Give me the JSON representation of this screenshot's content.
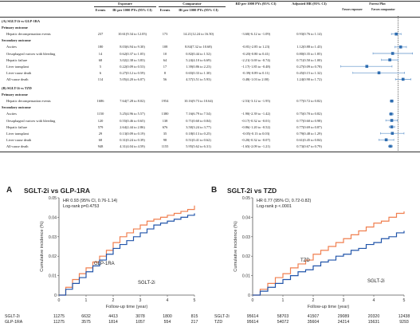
{
  "table": {
    "headers": {
      "outcome": "",
      "exposure": "Exposure",
      "comparator": "Comparator",
      "events": "Events",
      "ir": "IR per 1000 PYs (95% CI)",
      "rd": "RD per 1000 PYs (95% CI)",
      "hr": "Adjusted HR (95% CI)",
      "forest": "Forest Plot",
      "favors_exposure": "Favors exposure",
      "favors_comparator": "Favors comparator"
    },
    "sections": [
      {
        "title": "(A) SGLT-2i vs GLP-1RA",
        "groups": [
          {
            "label": "Primary outcome",
            "rows": [
              {
                "outcome": "Hepatic decompensation events",
                "e_events": "237",
                "e_ir": "10.61(9.34 to 12.05)",
                "c_events": "173",
                "c_ir": "14.21(12.24 to 16.50)",
                "rd": "-3.60(-6.12 to -1.09)",
                "hr": "0.93(0.76 to 1.14)",
                "hr_point": 0.93,
                "hr_low": 0.76,
                "hr_high": 1.14
              }
            ]
          },
          {
            "label": "Secondary outcome",
            "rows": [
              {
                "outcome": "Ascites",
                "e_events": "180",
                "e_ir": "8.03(6.94 to 9.30)",
                "c_events": "108",
                "c_ir": "8.84(7.32 to 10.68)",
                "rd": "-0.81(-2.85 to 1.23)",
                "hr": "1.12(0.88 to 1.43)",
                "hr_point": 1.12,
                "hr_low": 0.88,
                "hr_high": 1.43
              },
              {
                "outcome": "Oesophageal varices with bleeding",
                "e_events": "14",
                "e_ir": "0.62(0.37 to 1.05)",
                "c_events": "10",
                "c_ir": "0.82(0.44 to 1.52)",
                "rd": "-0.20(-0.80 to 0.41)",
                "hr": "0.80(0.35 to 1.85)",
                "hr_point": 0.8,
                "hr_low": 0.35,
                "hr_high": 1.85
              },
              {
                "outcome": "Hepatic failure",
                "e_events": "68",
                "c_events": "64",
                "e_ir": "3.02(2.38 to 3.83)",
                "c_ir": "5.24(4.10 to 6.69)",
                "rd": "-2.21(-3.69 to -0.74)",
                "hr": "0.71(0.50 to 1.00)",
                "hr_point": 0.71,
                "hr_low": 0.5,
                "hr_high": 1.0
              },
              {
                "outcome": "Liver transplant",
                "e_events": "5",
                "e_ir": "0.22(0.09 to 0.53)",
                "c_events": "17",
                "c_ir": "1.39(0.86 to 2.23)",
                "rd": "-1.17(-1.85 to -0.48)",
                "hr": "0.27(0.09 to 0.78)",
                "hr_point": 0.27,
                "hr_low": 0.09,
                "hr_high": 0.78
              },
              {
                "outcome": "Liver-cause death",
                "e_events": "6",
                "e_ir": "0.27(0.12 to 0.59)",
                "c_events": "8",
                "c_ir": "0.65(0.33 to 1.30)",
                "rd": "-0.39(-0.89 to 0.11)",
                "hr": "0.45(0.15 to 1.32)",
                "hr_point": 0.45,
                "hr_low": 0.15,
                "hr_high": 1.32
              },
              {
                "outcome": "All-cause death",
                "e_events": "114",
                "e_ir": "5.05(4.20 to 6.07)",
                "c_events": "56",
                "c_ir": "4.57(3.51 to 5.93)",
                "rd": "0.48(-1.03 to 2.00)",
                "hr": "1.24(0.90 to 1.72)",
                "hr_point": 1.24,
                "hr_low": 0.9,
                "hr_high": 1.72
              }
            ]
          }
        ]
      },
      {
        "title": "(B) SGLT-2i vs TZD",
        "groups": [
          {
            "label": "Primary outcome",
            "rows": [
              {
                "outcome": "Hepatic decompensation events",
                "e_events": "1686",
                "e_ir": "7.64(7.28 to 8.02)",
                "c_events": "1954",
                "c_ir": "10.16(9.73 to 10.64)",
                "rd": "-2.53(-3.12 to -1.95)",
                "hr": "0.77(0.72 to 0.82)",
                "hr_point": 0.77,
                "hr_low": 0.72,
                "hr_high": 0.82
              }
            ]
          },
          {
            "label": "Secondary outcome",
            "rows": [
              {
                "outcome": "Ascites",
                "e_events": "1150",
                "e_ir": "5.25(4.96 to 5.57)",
                "c_events": "1380",
                "c_ir": "7.16(6.79 to 7.54)",
                "rd": "-1.90(-2.39 to -1.42)",
                "hr": "0.75(0.70 to 0.82)",
                "hr_point": 0.75,
                "hr_low": 0.7,
                "hr_high": 0.82
              },
              {
                "outcome": "Oesophageal varices with bleeding",
                "e_events": "120",
                "e_ir": "0.55(0.46 to 0.65)",
                "c_events": "138",
                "c_ir": "0.71(0.60 to 0.84)",
                "rd": "-0.17(-0.32 to -0.01)",
                "hr": "0.77(0.60 to 0.98)",
                "hr_point": 0.77,
                "hr_low": 0.6,
                "hr_high": 0.98
              },
              {
                "outcome": "Hepatic failure",
                "e_events": "579",
                "e_ir": "2.64(2.44 to 2.86)",
                "c_events": "676",
                "c_ir": "3.50(3.24 to 3.77)",
                "rd": "-0.86(-1.20 to -0.52)",
                "hr": "0.77(0.69 to 0.87)",
                "hr_point": 0.77,
                "hr_low": 0.69,
                "hr_high": 0.87
              },
              {
                "outcome": "Liver transplant",
                "e_events": "29",
                "e_ir": "0.13(0.09 to 0.19)",
                "c_events": "35",
                "c_ir": "0.18(0.13 to 0.25)",
                "rd": "-0.05(-0.13 to 0.03)",
                "hr": "0.79(0.48 to 1.29)",
                "hr_point": 0.79,
                "hr_low": 0.48,
                "hr_high": 1.29
              },
              {
                "outcome": "Liver-cause death",
                "e_events": "68",
                "e_ir": "0.31(0.24 to 0.39)",
                "c_events": "98",
                "c_ir": "0.51(0.41 to 0.62)",
                "rd": "-0.20(-0.32 to -0.07)",
                "hr": "0.61(0.45 to 0.84)",
                "hr_point": 0.61,
                "hr_low": 0.45,
                "hr_high": 0.84
              },
              {
                "outcome": "All-cause death",
                "e_events": "948",
                "e_ir": "4.31(4.04 to 4.59)",
                "c_events": "1155",
                "c_ir": "5.95(5.62 to 6.31)",
                "rd": "-1.65(-2.09 to -1.21)",
                "hr": "0.73(0.67 to 0.79)",
                "hr_point": 0.73,
                "hr_low": 0.67,
                "hr_high": 0.79
              }
            ]
          }
        ]
      }
    ]
  },
  "km_panels": [
    {
      "letter": "A",
      "title": "SGLT-2i vs GLP-1RA",
      "stats_line1": "HR 0.93 (95% CI, 0.76-1.14)",
      "stats_line2": "Log-rank p=0.4753",
      "label_series1": "GLP-1RA",
      "label_series2": "SGLT-2i",
      "xlabel": "Follow-up time (year)",
      "ylabel": "Cumulative incidence (%)",
      "risk_rows": [
        {
          "name": "SGLT-2i",
          "values": [
            "11275",
            "6632",
            "4413",
            "3078",
            "1800",
            "815"
          ]
        },
        {
          "name": "GLP-1RA",
          "values": [
            "11275",
            "3575",
            "1814",
            "1057",
            "554",
            "217"
          ]
        }
      ]
    },
    {
      "letter": "B",
      "title": "SGLT-2i vs TZD",
      "stats_line1": "HR 0.77 (95% CI, 0.72-0.82)",
      "stats_line2": "Log-rank p <.0001",
      "label_series1": "TZD",
      "label_series2": "SGLT-2i",
      "xlabel": "Follow-up time (year)",
      "ylabel": "Cumulative incidence (%)",
      "risk_rows": [
        {
          "name": "SGLT-2i",
          "values": [
            "95614",
            "58703",
            "41507",
            "29089",
            "20320",
            "12438"
          ]
        },
        {
          "name": "TZD",
          "values": [
            "95614",
            "54072",
            "35604",
            "24214",
            "15631",
            "9293"
          ]
        }
      ]
    }
  ],
  "chart_data": [
    {
      "type": "line",
      "title": "SGLT-2i vs GLP-1RA",
      "xlabel": "Follow-up time (year)",
      "ylabel": "Cumulative incidence (%)",
      "xlim": [
        0,
        5
      ],
      "ylim": [
        0,
        0.05
      ],
      "xticks": [
        "0",
        "1",
        "2",
        "3",
        "4",
        "5"
      ],
      "yticks": [
        "0",
        "0.01",
        "0.02",
        "0.03",
        "0.04",
        "0.05"
      ],
      "series": [
        {
          "name": "GLP-1RA",
          "color": "#f07f4f",
          "x": [
            0,
            0.25,
            0.5,
            0.75,
            1,
            1.25,
            1.5,
            1.75,
            2,
            2.25,
            2.5,
            2.75,
            3,
            3.25,
            3.5,
            3.75,
            4,
            4.25,
            4.5,
            4.75,
            5
          ],
          "y": [
            0,
            0.004,
            0.008,
            0.011,
            0.014,
            0.017,
            0.02,
            0.023,
            0.027,
            0.03,
            0.032,
            0.034,
            0.036,
            0.038,
            0.039,
            0.04,
            0.041,
            0.042,
            0.043,
            0.044,
            0.046
          ]
        },
        {
          "name": "SGLT-2i",
          "color": "#2255aa",
          "x": [
            0,
            0.25,
            0.5,
            0.75,
            1,
            1.25,
            1.5,
            1.75,
            2,
            2.25,
            2.5,
            2.75,
            3,
            3.25,
            3.5,
            3.75,
            4,
            4.25,
            4.5,
            4.75,
            5
          ],
          "y": [
            0,
            0.003,
            0.006,
            0.009,
            0.012,
            0.015,
            0.018,
            0.021,
            0.024,
            0.026,
            0.028,
            0.03,
            0.032,
            0.034,
            0.036,
            0.037,
            0.038,
            0.039,
            0.04,
            0.041,
            0.042
          ]
        }
      ]
    },
    {
      "type": "line",
      "title": "SGLT-2i vs TZD",
      "xlabel": "Follow-up time (year)",
      "ylabel": "Cumulative incidence (%)",
      "xlim": [
        0,
        5
      ],
      "ylim": [
        0,
        0.05
      ],
      "xticks": [
        "0",
        "1",
        "2",
        "3",
        "4",
        "5"
      ],
      "yticks": [
        "0",
        "0.01",
        "0.02",
        "0.03",
        "0.04",
        "0.05"
      ],
      "series": [
        {
          "name": "TZD",
          "color": "#f07f4f",
          "x": [
            0,
            0.25,
            0.5,
            0.75,
            1,
            1.25,
            1.5,
            1.75,
            2,
            2.25,
            2.5,
            2.75,
            3,
            3.25,
            3.5,
            3.75,
            4,
            4.25,
            4.5,
            4.75,
            5
          ],
          "y": [
            0,
            0.003,
            0.006,
            0.009,
            0.011,
            0.014,
            0.016,
            0.018,
            0.021,
            0.023,
            0.025,
            0.027,
            0.029,
            0.031,
            0.033,
            0.035,
            0.037,
            0.038,
            0.04,
            0.042,
            0.043
          ]
        },
        {
          "name": "SGLT-2i",
          "color": "#2255aa",
          "x": [
            0,
            0.25,
            0.5,
            0.75,
            1,
            1.25,
            1.5,
            1.75,
            2,
            2.25,
            2.5,
            2.75,
            3,
            3.25,
            3.5,
            3.75,
            4,
            4.25,
            4.5,
            4.75,
            5
          ],
          "y": [
            0,
            0.002,
            0.004,
            0.006,
            0.008,
            0.01,
            0.012,
            0.013,
            0.015,
            0.017,
            0.018,
            0.02,
            0.021,
            0.023,
            0.024,
            0.026,
            0.027,
            0.029,
            0.03,
            0.032,
            0.033
          ]
        }
      ]
    },
    {
      "type": "scatter",
      "title": "Forest Plot",
      "xlabel": "",
      "scale": "log",
      "reference_line": 1.0,
      "rows_note": "adjusted HR with 95% CI per outcome row",
      "series": [
        {
          "name": "(A) SGLT-2i vs GLP-1RA",
          "x": [
            0.93,
            1.12,
            0.8,
            0.71,
            0.27,
            0.45,
            1.24
          ],
          "low": [
            0.76,
            0.88,
            0.35,
            0.5,
            0.09,
            0.15,
            0.9
          ],
          "high": [
            1.14,
            1.43,
            1.85,
            1.0,
            0.78,
            1.32,
            1.72
          ]
        },
        {
          "name": "(B) SGLT-2i vs TZD",
          "x": [
            0.77,
            0.75,
            0.77,
            0.77,
            0.79,
            0.61,
            0.73
          ],
          "low": [
            0.72,
            0.7,
            0.6,
            0.69,
            0.48,
            0.45,
            0.67
          ],
          "high": [
            0.82,
            0.82,
            0.98,
            0.87,
            1.29,
            0.84,
            0.79
          ]
        }
      ]
    }
  ]
}
